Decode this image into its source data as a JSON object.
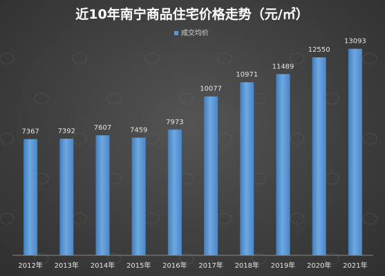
{
  "chart_data": {
    "type": "bar",
    "title": "近10年南宁商品住宅价格走势（元/㎡）",
    "xlabel": "",
    "ylabel": "",
    "legend_position": "top-center",
    "grid": false,
    "ylim": [
      0,
      14000
    ],
    "categories": [
      "2012年",
      "2013年",
      "2014年",
      "2015年",
      "2016年",
      "2017年",
      "2018年",
      "2019年",
      "2020年",
      "2021年"
    ],
    "series": [
      {
        "name": "成交均价",
        "values": [
          7367,
          7392,
          7607,
          7459,
          7973,
          10077,
          10971,
          11489,
          12550,
          13093
        ],
        "color": "#5b9bd5"
      }
    ]
  }
}
